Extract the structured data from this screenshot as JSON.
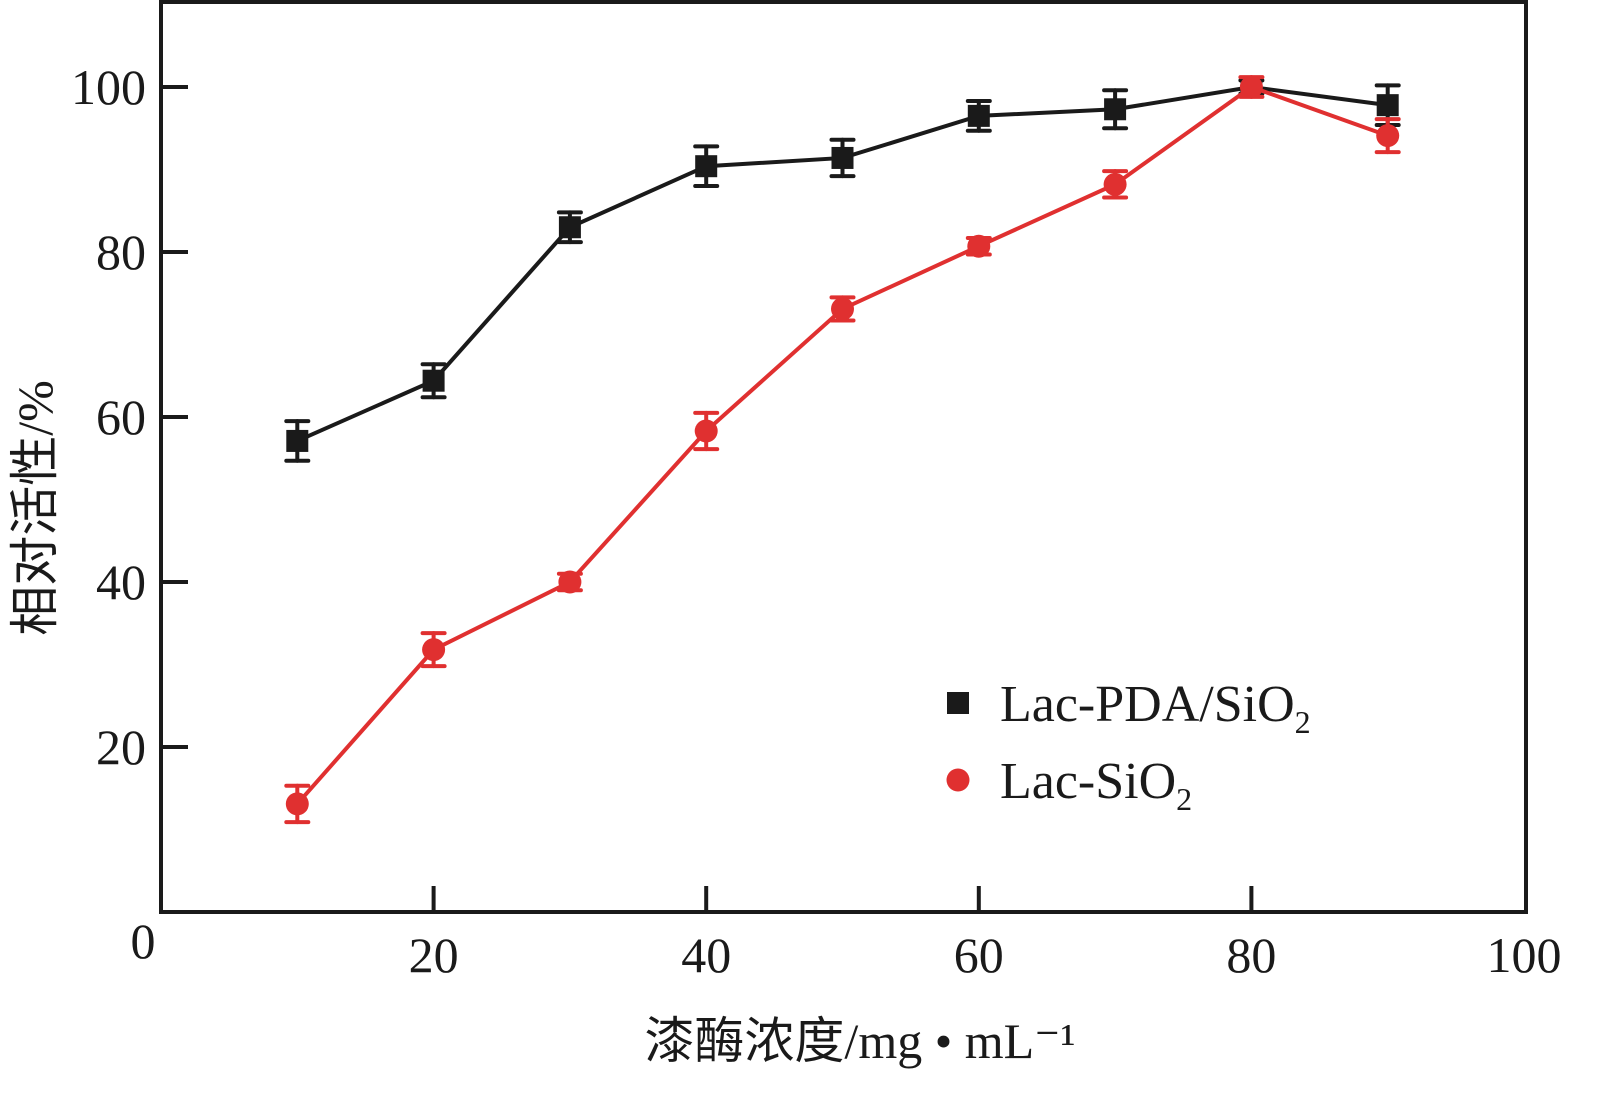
{
  "chart_data": {
    "type": "line",
    "xlabel": "漆酶浓度/mg • mL⁻¹",
    "ylabel": "相对活性/%",
    "xlim": [
      0,
      100
    ],
    "ylim": [
      0,
      110
    ],
    "x_ticks": [
      "0",
      "20",
      "40",
      "60",
      "80",
      "100"
    ],
    "y_ticks": [
      "20",
      "40",
      "60",
      "80",
      "100"
    ],
    "grid": false,
    "legend_position": "bottom-right",
    "x": [
      10,
      20,
      30,
      40,
      50,
      60,
      70,
      80,
      90
    ],
    "series": [
      {
        "name": "Lac-PDA/SiO₂",
        "label_main": "Lac-PDA/SiO",
        "label_sub": "2",
        "marker": "square",
        "color": "#1a1a1a",
        "values": [
          57.1,
          64.4,
          83.0,
          90.4,
          91.4,
          96.5,
          97.3,
          100,
          97.8
        ],
        "errors": [
          2.4,
          2.0,
          1.8,
          2.4,
          2.2,
          1.8,
          2.3,
          0.8,
          2.4
        ]
      },
      {
        "name": "Lac-SiO₂",
        "label_main": "Lac-SiO",
        "label_sub": "2",
        "marker": "circle",
        "color": "#e03030",
        "values": [
          13.1,
          31.8,
          40.0,
          58.3,
          73.1,
          80.7,
          88.2,
          100,
          94.1
        ],
        "errors": [
          2.2,
          2.0,
          1.0,
          2.2,
          1.4,
          1.0,
          1.6,
          1.2,
          2.0
        ]
      }
    ]
  }
}
